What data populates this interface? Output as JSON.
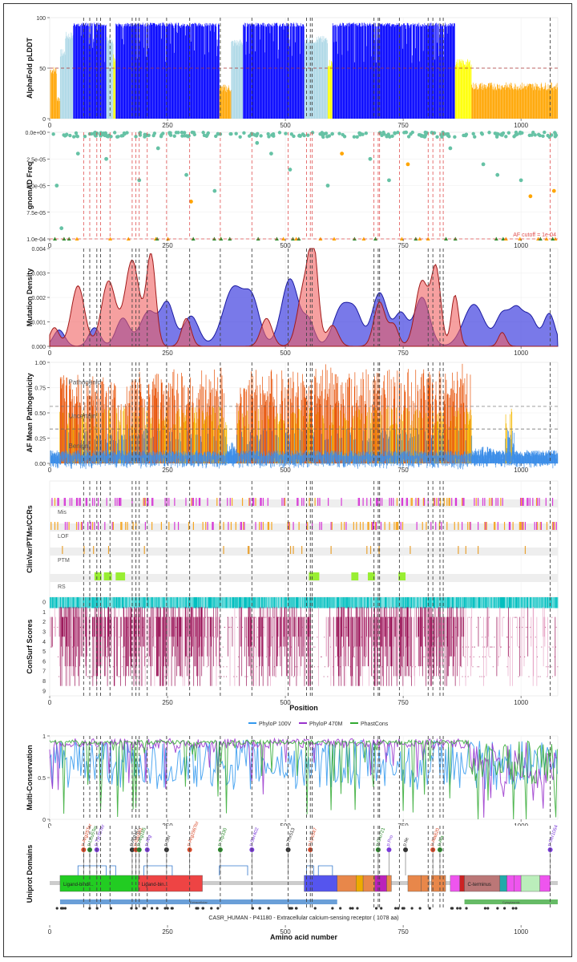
{
  "chart_data": {
    "type": "multi-panel",
    "protein_title": "CASR_HUMAN - P41180 - Extracellular calcium-sensing receptor ( 1078 aa)",
    "xlim": [
      0,
      1078
    ],
    "x_ticks": [
      0,
      250,
      500,
      750,
      1000
    ],
    "x_axis_label_mid": "Position",
    "x_axis_label_bottom": "Amino acid number",
    "reference_lines": [
      72,
      85,
      100,
      108,
      128,
      175,
      183,
      190,
      207,
      248,
      297,
      362,
      429,
      506,
      545,
      553,
      557,
      688,
      697,
      700,
      742,
      803,
      813,
      828,
      835,
      1062
    ],
    "panels": [
      {
        "id": "plddt",
        "type": "bar",
        "ylabel": "AlphaFold pLDDT",
        "y_ticks": [
          0,
          50,
          100
        ],
        "ylim": [
          0,
          100
        ],
        "threshold": 50,
        "segments": [
          {
            "start": 1,
            "end": 15,
            "value": 48,
            "color": "#ffa500"
          },
          {
            "start": 15,
            "end": 22,
            "value": 20,
            "color": "#ffa500"
          },
          {
            "start": 22,
            "end": 33,
            "value": 65,
            "color": "#add8e6"
          },
          {
            "start": 33,
            "end": 50,
            "value": 82,
            "color": "#add8e6"
          },
          {
            "start": 50,
            "end": 120,
            "value": 95,
            "color": "#0000ff"
          },
          {
            "start": 120,
            "end": 135,
            "value": 78,
            "color": "#add8e6"
          },
          {
            "start": 135,
            "end": 140,
            "value": 60,
            "color": "#ffff00"
          },
          {
            "start": 140,
            "end": 360,
            "value": 95,
            "color": "#0000ff"
          },
          {
            "start": 360,
            "end": 385,
            "value": 30,
            "color": "#ffa500"
          },
          {
            "start": 385,
            "end": 410,
            "value": 75,
            "color": "#add8e6"
          },
          {
            "start": 410,
            "end": 540,
            "value": 95,
            "color": "#0000ff"
          },
          {
            "start": 540,
            "end": 590,
            "value": 78,
            "color": "#add8e6"
          },
          {
            "start": 590,
            "end": 600,
            "value": 55,
            "color": "#ffff00"
          },
          {
            "start": 600,
            "end": 860,
            "value": 95,
            "color": "#0000ff"
          },
          {
            "start": 860,
            "end": 895,
            "value": 55,
            "color": "#ffff00"
          },
          {
            "start": 895,
            "end": 1078,
            "value": 32,
            "color": "#ffa500"
          }
        ]
      },
      {
        "id": "gnomad",
        "type": "scatter",
        "ylabel": "gnomAD Freq",
        "y_tick_labels": [
          "0.0e+00",
          "2.5e-05",
          "5.0e-05",
          "7.5e-05",
          "1.0e-04"
        ],
        "ylim": [
          0,
          0.0001
        ],
        "y_reversed": true,
        "annotation": "AF cutoff = 1e-04",
        "points": [
          {
            "x": 15,
            "y": 5e-05,
            "color": "#66c2a5"
          },
          {
            "x": 25,
            "y": 9e-05,
            "color": "#66c2a5"
          },
          {
            "x": 60,
            "y": 2e-05,
            "color": "#66c2a5"
          },
          {
            "x": 120,
            "y": 2.5e-05,
            "color": "#66c2a5"
          },
          {
            "x": 190,
            "y": 4.5e-05,
            "color": "#66c2a5"
          },
          {
            "x": 230,
            "y": 1.5e-05,
            "color": "#66c2a5"
          },
          {
            "x": 290,
            "y": 4e-05,
            "color": "#66c2a5"
          },
          {
            "x": 300,
            "y": 6.5e-05,
            "color": "#ffa500"
          },
          {
            "x": 350,
            "y": 5.5e-05,
            "color": "#66c2a5"
          },
          {
            "x": 440,
            "y": 1e-05,
            "color": "#66c2a5"
          },
          {
            "x": 470,
            "y": 2e-05,
            "color": "#66c2a5"
          },
          {
            "x": 510,
            "y": 3.5e-05,
            "color": "#66c2a5"
          },
          {
            "x": 590,
            "y": 5e-05,
            "color": "#66c2a5"
          },
          {
            "x": 620,
            "y": 2e-05,
            "color": "#ffa500"
          },
          {
            "x": 680,
            "y": 2.5e-05,
            "color": "#66c2a5"
          },
          {
            "x": 720,
            "y": 4.5e-05,
            "color": "#66c2a5"
          },
          {
            "x": 760,
            "y": 3e-05,
            "color": "#ffa500"
          },
          {
            "x": 850,
            "y": 1.5e-05,
            "color": "#66c2a5"
          },
          {
            "x": 920,
            "y": 3e-05,
            "color": "#66c2a5"
          },
          {
            "x": 950,
            "y": 4e-05,
            "color": "#66c2a5"
          },
          {
            "x": 1000,
            "y": 4.5e-05,
            "color": "#66c2a5"
          },
          {
            "x": 1020,
            "y": 6e-05,
            "color": "#ffa500"
          },
          {
            "x": 1070,
            "y": 5.5e-05,
            "color": "#ffa500"
          }
        ]
      },
      {
        "id": "density",
        "type": "area",
        "ylabel": "Mutation Density",
        "y_tick_labels": [
          "0.000",
          "0.001",
          "0.002",
          "0.003",
          "0.004"
        ],
        "ylim": [
          0,
          0.0042
        ],
        "series": [
          {
            "color": "#4040e0",
            "peaks": [
              [
                20,
                0.0007,
                12
              ],
              [
                95,
                0.0008,
                12
              ],
              [
                155,
                0.0012,
                14
              ],
              [
                210,
                0.0015,
                18
              ],
              [
                250,
                0.0018,
                14
              ],
              [
                300,
                0.0013,
                16
              ],
              [
                390,
                0.0025,
                22
              ],
              [
                430,
                0.0018,
                16
              ],
              [
                510,
                0.0029,
                18
              ],
              [
                550,
                0.001,
                12
              ],
              [
                620,
                0.0017,
                18
              ],
              [
                650,
                0.0012,
                14
              ],
              [
                700,
                0.0023,
                16
              ],
              [
                745,
                0.0014,
                14
              ],
              [
                790,
                0.0021,
                16
              ],
              [
                900,
                0.0018,
                22
              ],
              [
                960,
                0.0013,
                14
              ],
              [
                990,
                0.0015,
                14
              ],
              [
                1020,
                0.0012,
                14
              ],
              [
                1060,
                0.0014,
                12
              ]
            ]
          },
          {
            "color": "#f06060",
            "peaks": [
              [
                10,
                0.0008,
                10
              ],
              [
                60,
                0.0026,
                14
              ],
              [
                125,
                0.0028,
                15
              ],
              [
                175,
                0.0037,
                15
              ],
              [
                215,
                0.0039,
                10
              ],
              [
                290,
                0.0012,
                10
              ],
              [
                460,
                0.0012,
                12
              ],
              [
                540,
                0.0025,
                14
              ],
              [
                560,
                0.0037,
                10
              ],
              [
                600,
                0.0009,
                12
              ],
              [
                700,
                0.0019,
                12
              ],
              [
                730,
                0.0009,
                10
              ],
              [
                790,
                0.0028,
                14
              ],
              [
                820,
                0.0032,
                10
              ],
              [
                860,
                0.0022,
                8
              ],
              [
                960,
                0.0006,
                8
              ]
            ]
          }
        ]
      },
      {
        "id": "pathogenicity",
        "type": "bar",
        "ylabel": "AF Mean Pathogenicity",
        "y_ticks": [
          0,
          0.25,
          0.5,
          0.75,
          1
        ],
        "y_tick_labels": [
          "0.00",
          "0.25",
          "0.50",
          "0.75",
          "1.00"
        ],
        "ylim": [
          0,
          1
        ],
        "thresholds": [
          0.34,
          0.564
        ],
        "class_labels": [
          "Pathogenic",
          "Uncertain",
          "Benign"
        ],
        "profile": [
          [
            0,
            0.12
          ],
          [
            20,
            0.8
          ],
          [
            140,
            0.55
          ],
          [
            160,
            0.85
          ],
          [
            360,
            0.88
          ],
          [
            375,
            0.2
          ],
          [
            395,
            0.7
          ],
          [
            420,
            0.85
          ],
          [
            560,
            0.9
          ],
          [
            600,
            0.85
          ],
          [
            860,
            0.9
          ],
          [
            895,
            0.15
          ],
          [
            950,
            0.12
          ],
          [
            965,
            0.5
          ],
          [
            985,
            0.12
          ],
          [
            1078,
            0.08
          ]
        ]
      },
      {
        "id": "tracks",
        "type": "tracks",
        "ylabel": "ClinVar/PTMs/CCRs",
        "rows": [
          {
            "label": "Mis",
            "color": "#d63ad6",
            "density": 0.55
          },
          {
            "label": "LOF",
            "color": "#f5a623",
            "density": 0.5
          },
          {
            "label": "PTM",
            "color": "#e8a030",
            "density": 0.08
          },
          {
            "label": "RS",
            "color": "#99ee33",
            "blocks": [
              [
                95,
                110
              ],
              [
                115,
                132
              ],
              [
                140,
                160
              ],
              [
                550,
                572
              ],
              [
                640,
                655
              ],
              [
                675,
                690
              ],
              [
                740,
                755
              ]
            ]
          }
        ]
      },
      {
        "id": "consurf",
        "type": "heatmap",
        "ylabel": "ConSurf Scores",
        "y_tick_labels": [
          "0",
          "1",
          "2",
          "3",
          "4",
          "5",
          "6",
          "7",
          "8",
          "9"
        ]
      },
      {
        "id": "conservation",
        "type": "line",
        "ylabel": "Multi-Conservation",
        "y_ticks": [
          0,
          0.5,
          1
        ],
        "y_tick_labels": [
          "0",
          "0.5",
          "1"
        ],
        "ylim": [
          0,
          1
        ],
        "legend": [
          "PhyloP 100V",
          "PhyloP 470M",
          "PhastCons"
        ],
        "legend_colors": [
          "#3399ee",
          "#9933cc",
          "#33aa33"
        ]
      },
      {
        "id": "domains",
        "type": "domains",
        "ylabel": "Uniprot Domains",
        "domains": [
          {
            "start": 22,
            "end": 188,
            "color": "#22cc22",
            "label": "Ligand-bindi..."
          },
          {
            "start": 188,
            "end": 324,
            "color": "#ee4444",
            "label": "Ligand-bin..."
          },
          {
            "start": 540,
            "end": 610,
            "color": "#5555ee",
            "label": ""
          },
          {
            "start": 610,
            "end": 650,
            "color": "#e8874a",
            "label": ""
          },
          {
            "start": 650,
            "end": 665,
            "color": "#eeaa00",
            "label": ""
          },
          {
            "start": 665,
            "end": 690,
            "color": "#e8874a",
            "label": ""
          },
          {
            "start": 690,
            "end": 715,
            "color": "#bb22bb",
            "label": ""
          },
          {
            "start": 715,
            "end": 725,
            "color": "#e8874a",
            "label": ""
          },
          {
            "start": 760,
            "end": 788,
            "color": "#e8874a",
            "label": ""
          },
          {
            "start": 788,
            "end": 805,
            "color": "#e8874a",
            "label": ""
          },
          {
            "start": 810,
            "end": 840,
            "color": "#e8874a",
            "label": ""
          },
          {
            "start": 850,
            "end": 870,
            "color": "#ee55ee",
            "label": ""
          },
          {
            "start": 870,
            "end": 880,
            "color": "#cc2222",
            "label": ""
          },
          {
            "start": 880,
            "end": 955,
            "color": "#bb7777",
            "label": "C-terminus"
          },
          {
            "start": 955,
            "end": 970,
            "color": "#22aaaa",
            "label": ""
          },
          {
            "start": 970,
            "end": 985,
            "color": "#ee55ee",
            "label": ""
          },
          {
            "start": 985,
            "end": 1000,
            "color": "#ee55ee",
            "label": ""
          },
          {
            "start": 1000,
            "end": 1040,
            "color": "#bbeebb",
            "label": ""
          },
          {
            "start": 1040,
            "end": 1062,
            "color": "#ee55ee",
            "label": ""
          }
        ],
        "variant_labels": [
          {
            "x": 72,
            "label": "p.Arg25Ter"
          },
          {
            "x": 85,
            "label": "p.Leu5Ter"
          },
          {
            "x": 100,
            "label": "p.Tyr79Ter"
          },
          {
            "x": 175,
            "label": "p.Arg127"
          },
          {
            "x": 183,
            "label": "p.Glu191"
          },
          {
            "x": 190,
            "label": "p.Arg185"
          },
          {
            "x": 207,
            "label": "p.Arg"
          },
          {
            "x": 248,
            "label": "p.Ser"
          },
          {
            "x": 297,
            "label": "p.Arg296Ter"
          },
          {
            "x": 362,
            "label": "p.Trp330"
          },
          {
            "x": 429,
            "label": "p.Ser402"
          },
          {
            "x": 506,
            "label": "p.Thr513"
          },
          {
            "x": 553,
            "label": "p.Lys547"
          },
          {
            "x": 697,
            "label": "p.Glu721"
          },
          {
            "x": 720,
            "label": "p.Pro"
          },
          {
            "x": 755,
            "label": "p.Ile"
          },
          {
            "x": 813,
            "label": "p.Ala820"
          },
          {
            "x": 828,
            "label": "p.Ala"
          },
          {
            "x": 1062,
            "label": "p.Ser1064"
          }
        ],
        "bands": [
          {
            "start": 22,
            "end": 610,
            "color": "#6a9fd8",
            "label": "Extracellular"
          },
          {
            "start": 880,
            "end": 1078,
            "color": "#66bb66",
            "label": "Cytoplasmic"
          }
        ]
      }
    ]
  }
}
